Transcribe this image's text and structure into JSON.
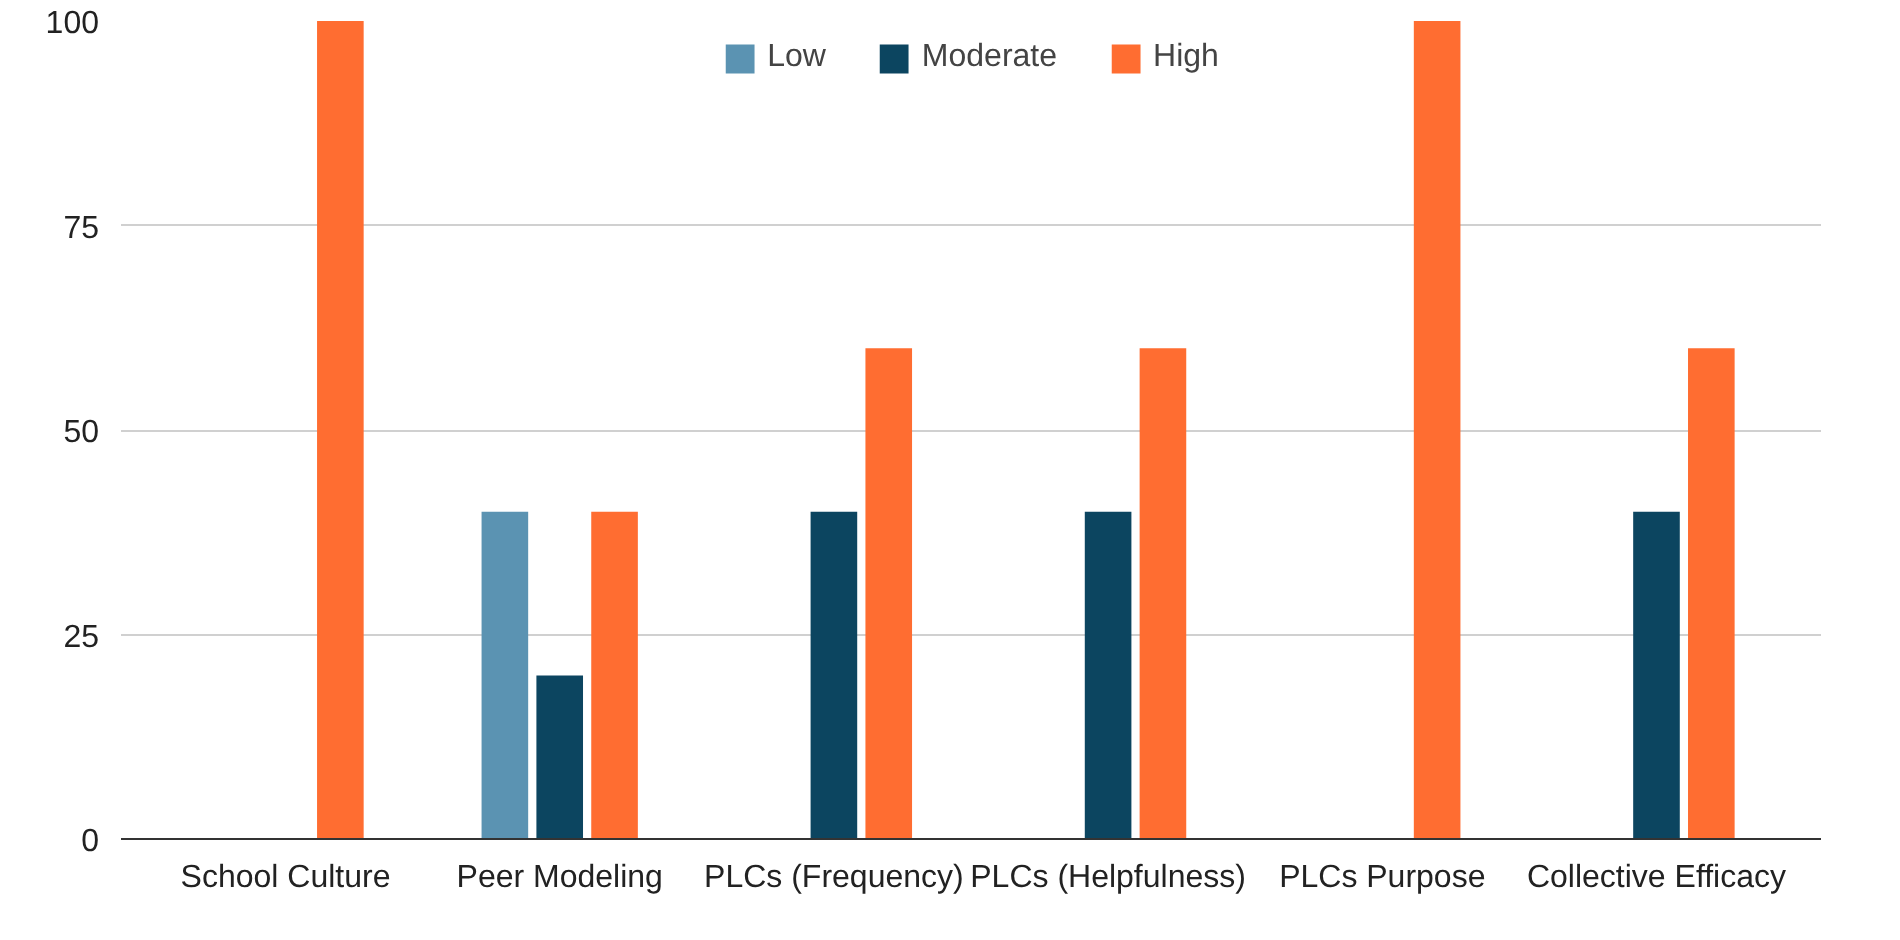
{
  "chart_data": {
    "type": "bar",
    "categories": [
      "School Culture",
      "Peer Modeling",
      "PLCs (Frequency)",
      "PLCs (Helpfulness)",
      "PLCs Purpose",
      "Collective Efficacy"
    ],
    "series": [
      {
        "name": "Low",
        "color": "#5b93b2",
        "values": [
          null,
          40,
          null,
          null,
          null,
          null
        ]
      },
      {
        "name": "Moderate",
        "color": "#0c4560",
        "values": [
          null,
          20,
          40,
          40,
          null,
          40
        ]
      },
      {
        "name": "High",
        "color": "#ff6d31",
        "values": [
          100,
          40,
          60,
          60,
          100,
          60
        ]
      }
    ],
    "ylim": [
      0,
      100
    ],
    "yticks": [
      0,
      25,
      50,
      75,
      100
    ],
    "grid": "y",
    "legend": "top"
  }
}
